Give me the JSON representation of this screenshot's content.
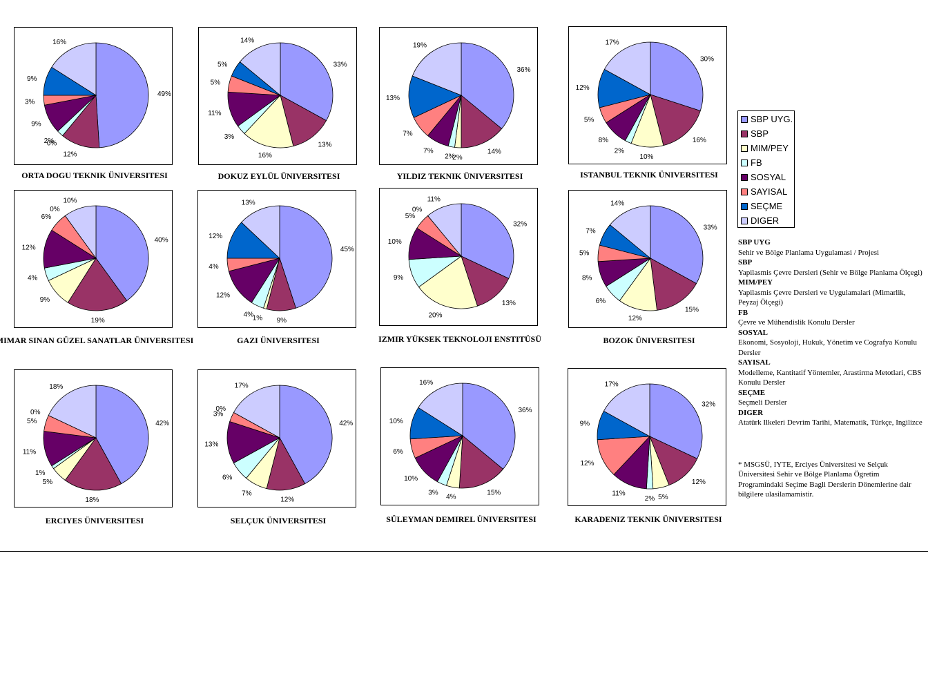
{
  "categories": [
    "SBP UYG.",
    "SBP",
    "MIM/PEY",
    "FB",
    "SOSYAL",
    "SAYISAL",
    "SEÇME",
    "DIGER"
  ],
  "colors": [
    "#9999ff",
    "#993366",
    "#ffffcc",
    "#ccffff",
    "#660066",
    "#ff8080",
    "#0066cc",
    "#ccccff"
  ],
  "legend": {
    "items": [
      "SBP UYG.",
      "SBP",
      "MIM/PEY",
      "FB",
      "SOSYAL",
      "SAYISAL",
      "SEÇME",
      "DIGER"
    ]
  },
  "notes": [
    {
      "title": "SBP UYG",
      "text": "Sehir ve Bölge Planlama Uygulamasi / Projesi"
    },
    {
      "title": "SBP",
      "text": "Yapilasmis Çevre Dersleri (Sehir ve Bölge Planlama Ölçegi)"
    },
    {
      "title": "MIM/PEY",
      "text": "Yapilasmis Çevre Dersleri ve Uygulamalari (Mimarlik, Peyzaj Ölçegi)"
    },
    {
      "title": "FB",
      "text": "Çevre ve Mühendislik Konulu Dersler"
    },
    {
      "title": "SOSYAL",
      "text": "Ekonomi, Sosyoloji, Hukuk, Yönetim ve Cografya Konulu Dersler"
    },
    {
      "title": "SAYISAL",
      "text": "Modelleme, Kantitatif Yöntemler, Arastirma Metotlari, CBS Konulu Dersler"
    },
    {
      "title": "SEÇME",
      "text": "Seçmeli Dersler"
    },
    {
      "title": "DIGER",
      "text": "Atatürk Ilkeleri Devrim Tarihi, Matematik, Türkçe, Ingilizce"
    }
  ],
  "footnote": "* MSGSÜ, IYTE, Erciyes Üniversitesi ve Selçuk Üniversitesi Sehir ve Bölge Planlama Ögretim Programindaki Seçime Bagli Derslerin Dönemlerine dair bilgilere ulasilamamistir.",
  "chart_data": [
    {
      "type": "pie",
      "title": "ORTA DOGU TEKNIK ÜNIVERSITESI",
      "categories": [
        "SBP UYG.",
        "SBP",
        "MIM/PEY",
        "FB",
        "SOSYAL",
        "SAYISAL",
        "SEÇME",
        "DIGER"
      ],
      "values": [
        49,
        12,
        0,
        2,
        9,
        3,
        9,
        16
      ]
    },
    {
      "type": "pie",
      "title": "DOKUZ EYLÜL ÜNIVERSITESI",
      "categories": [
        "SBP UYG.",
        "SBP",
        "MIM/PEY",
        "FB",
        "SOSYAL",
        "SAYISAL",
        "SEÇME",
        "DIGER"
      ],
      "values": [
        33,
        13,
        16,
        3,
        11,
        5,
        5,
        14
      ]
    },
    {
      "type": "pie",
      "title": "YILDIZ TEKNIK ÜNIVERSITESI",
      "categories": [
        "SBP UYG.",
        "SBP",
        "MIM/PEY",
        "FB",
        "SOSYAL",
        "SAYISAL",
        "SEÇME",
        "DIGER"
      ],
      "values": [
        36,
        14,
        2,
        2,
        7,
        7,
        13,
        19
      ]
    },
    {
      "type": "pie",
      "title": "ISTANBUL TEKNIK ÜNIVERSITESI",
      "categories": [
        "SBP UYG.",
        "SBP",
        "MIM/PEY",
        "FB",
        "SOSYAL",
        "SAYISAL",
        "SEÇME",
        "DIGER"
      ],
      "values": [
        30,
        16,
        10,
        2,
        8,
        5,
        12,
        17
      ]
    },
    {
      "type": "pie",
      "title": "MIMAR SINAN GÜZEL SANATLAR ÜNIVERSITESI",
      "categories": [
        "SBP UYG.",
        "SBP",
        "MIM/PEY",
        "FB",
        "SOSYAL",
        "SAYISAL",
        "SEÇME",
        "DIGER"
      ],
      "values": [
        40,
        19,
        9,
        4,
        12,
        6,
        0,
        10
      ]
    },
    {
      "type": "pie",
      "title": "GAZI ÜNIVERSITESI",
      "categories": [
        "SBP UYG.",
        "SBP",
        "MIM/PEY",
        "FB",
        "SOSYAL",
        "SAYISAL",
        "SEÇME",
        "DIGER"
      ],
      "values": [
        45,
        9,
        1,
        4,
        12,
        4,
        12,
        13
      ]
    },
    {
      "type": "pie",
      "title": "IZMIR YÜKSEK TEKNOLOJI ENSTITÜSÜ",
      "categories": [
        "SBP UYG.",
        "SBP",
        "MIM/PEY",
        "FB",
        "SOSYAL",
        "SAYISAL",
        "SEÇME",
        "DIGER"
      ],
      "values": [
        32,
        13,
        20,
        9,
        10,
        5,
        0,
        11
      ]
    },
    {
      "type": "pie",
      "title": "BOZOK ÜNIVERSITESI",
      "categories": [
        "SBP UYG.",
        "SBP",
        "MIM/PEY",
        "FB",
        "SOSYAL",
        "SAYISAL",
        "SEÇME",
        "DIGER"
      ],
      "values": [
        33,
        15,
        12,
        6,
        8,
        5,
        7,
        14
      ]
    },
    {
      "type": "pie",
      "title": "ERCIYES ÜNIVERSITESI",
      "categories": [
        "SBP UYG.",
        "SBP",
        "MIM/PEY",
        "FB",
        "SOSYAL",
        "SAYISAL",
        "SEÇME",
        "DIGER"
      ],
      "values": [
        42,
        18,
        5,
        1,
        11,
        5,
        0,
        18
      ]
    },
    {
      "type": "pie",
      "title": "SELÇUK ÜNIVERSITESI",
      "categories": [
        "SBP UYG.",
        "SBP",
        "MIM/PEY",
        "FB",
        "SOSYAL",
        "SAYISAL",
        "SEÇME",
        "DIGER"
      ],
      "values": [
        42,
        12,
        7,
        6,
        13,
        3,
        0,
        17
      ]
    },
    {
      "type": "pie",
      "title": "SÜLEYMAN DEMIREL ÜNIVERSITESI",
      "categories": [
        "SBP UYG.",
        "SBP",
        "MIM/PEY",
        "FB",
        "SOSYAL",
        "SAYISAL",
        "SEÇME",
        "DIGER"
      ],
      "values": [
        36,
        15,
        4,
        3,
        10,
        6,
        10,
        16
      ]
    },
    {
      "type": "pie",
      "title": "KARADENIZ TEKNIK ÜNIVERSITESI",
      "categories": [
        "SBP UYG.",
        "SBP",
        "MIM/PEY",
        "FB",
        "SOSYAL",
        "SAYISAL",
        "SEÇME",
        "DIGER"
      ],
      "values": [
        32,
        12,
        5,
        2,
        11,
        12,
        9,
        17
      ]
    }
  ]
}
